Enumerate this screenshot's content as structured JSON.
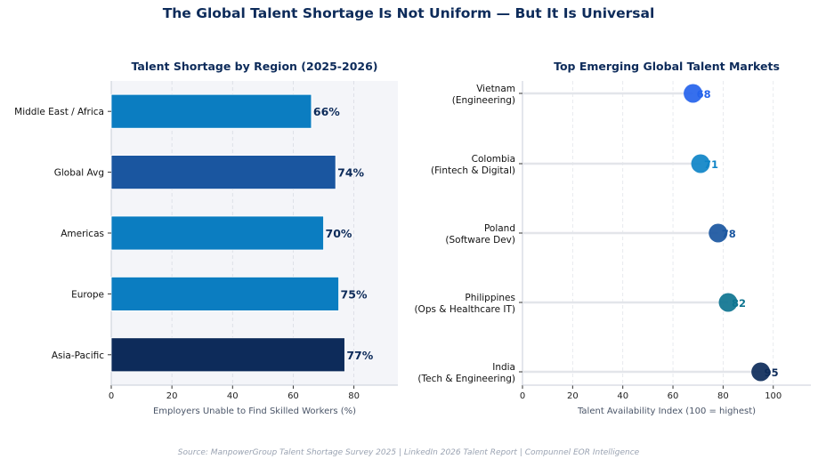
{
  "title": "The Global Talent Shortage Is Not Uniform — But It Is Universal",
  "source": "Source: ManpowerGroup Talent Shortage Survey 2025  |  LinkedIn 2026 Talent Report  |  Compunnel EOR Intelligence",
  "chart_data": [
    {
      "type": "bar",
      "orientation": "horizontal",
      "title": "Talent Shortage by Region (2025-2026)",
      "xlabel": "Employers Unable to Find Skilled Workers (%)",
      "ylabel": "",
      "categories": [
        "Middle East / Africa",
        "Global Avg",
        "Americas",
        "Europe",
        "Asia-Pacific"
      ],
      "values": [
        66,
        74,
        70,
        75,
        77
      ],
      "data_labels": [
        "66%",
        "74%",
        "70%",
        "75%",
        "77%"
      ],
      "colors": [
        "#0b7dc1",
        "#1a56a0",
        "#0b7dc1",
        "#0b7dc1",
        "#0d2b5a"
      ],
      "xlim": [
        0,
        94.5
      ],
      "xticks": [
        "0",
        "20",
        "40",
        "60",
        "80"
      ],
      "grid": "vertical dashed",
      "background": "#f4f5f9"
    },
    {
      "type": "scatter",
      "style": "lollipop",
      "title": "Top Emerging Global Talent Markets",
      "xlabel": "Talent Availability Index (100 = highest)",
      "ylabel": "",
      "categories": [
        "Vietnam\n(Engineering)",
        "Colombia\n(Fintech & Digital)",
        "Poland\n(Software Dev)",
        "Philippines\n(Ops & Healthcare IT)",
        "India\n(Tech & Engineering)"
      ],
      "category_lines": [
        [
          "Vietnam",
          "(Engineering)"
        ],
        [
          "Colombia",
          "(Fintech & Digital)"
        ],
        [
          "Poland",
          "(Software Dev)"
        ],
        [
          "Philippines",
          "(Ops & Healthcare IT)"
        ],
        [
          "India",
          "(Tech & Engineering)"
        ]
      ],
      "values": [
        68,
        71,
        78,
        82,
        95
      ],
      "data_labels": [
        "68",
        "71",
        "78",
        "82",
        "95"
      ],
      "colors": [
        "#2563eb",
        "#0e84c7",
        "#1a56a0",
        "#0e7490",
        "#0d2b5a"
      ],
      "xlim": [
        0,
        115
      ],
      "xticks": [
        "0",
        "20",
        "40",
        "60",
        "80",
        "100"
      ],
      "grid": "vertical dashed"
    }
  ]
}
